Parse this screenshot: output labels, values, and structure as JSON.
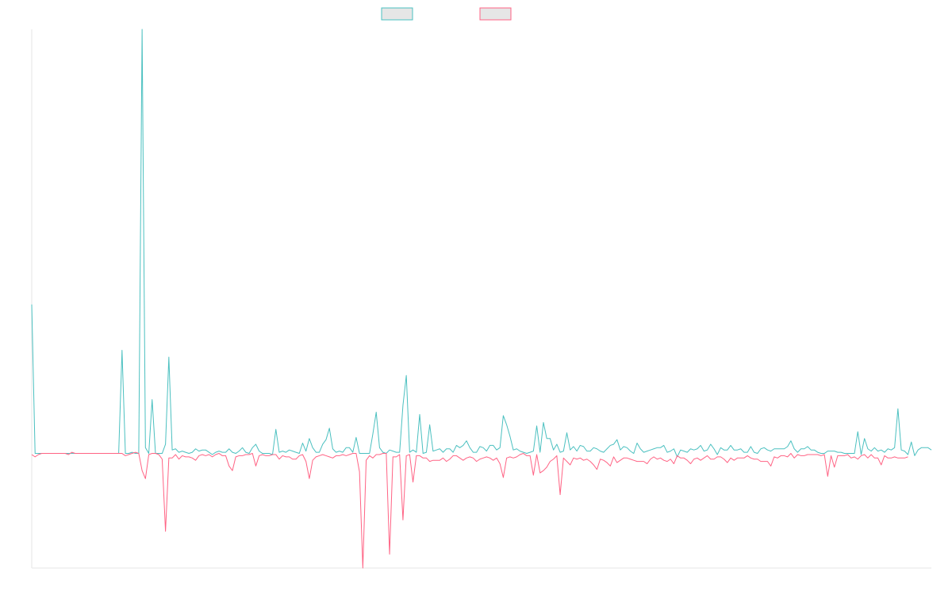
{
  "colors": {
    "series_a": "#4bc0c0",
    "series_b": "#ff6384",
    "legend_fill": "#e6e6e6",
    "axis": "#e6e6e6"
  },
  "chart_data": {
    "type": "line",
    "title": "",
    "xlabel": "",
    "ylabel": "",
    "grid": false,
    "legend": "top-center",
    "ylim": [
      -100,
      370
    ],
    "series": [
      {
        "values": [
          130,
          0,
          0,
          0,
          0,
          0,
          0,
          0,
          0,
          0,
          0,
          0,
          0,
          0,
          0,
          0,
          0,
          0,
          0,
          0,
          0,
          0,
          0,
          0,
          0,
          0,
          0,
          90,
          0,
          0,
          1,
          0,
          0,
          370,
          5,
          0,
          47,
          0,
          0,
          0,
          8,
          84,
          3,
          4,
          1,
          2,
          1,
          0,
          1,
          4,
          2,
          3,
          3,
          1,
          -1,
          1,
          2,
          1,
          1,
          4,
          1,
          0,
          2,
          5,
          1,
          0,
          5,
          8,
          2,
          0,
          0,
          0,
          -1,
          21,
          1,
          2,
          1,
          3,
          2,
          1,
          0,
          9,
          2,
          13,
          5,
          1,
          1,
          8,
          12,
          22,
          4,
          1,
          2,
          1,
          5,
          5,
          1,
          14,
          0,
          0,
          0,
          0,
          17,
          36,
          5,
          1,
          0,
          3,
          2,
          1,
          1,
          42,
          68,
          1,
          3,
          1,
          34,
          0,
          1,
          25,
          2,
          3,
          4,
          1,
          4,
          4,
          1,
          7,
          5,
          7,
          11,
          5,
          1,
          1,
          6,
          5,
          2,
          7,
          7,
          3,
          5,
          33,
          25,
          15,
          3,
          4,
          2,
          1,
          0,
          1,
          2,
          24,
          1,
          27,
          13,
          13,
          3,
          8,
          1,
          2,
          18,
          3,
          6,
          2,
          7,
          6,
          2,
          2,
          5,
          4,
          2,
          1,
          4,
          7,
          8,
          12,
          3,
          6,
          5,
          2,
          0,
          9,
          4,
          1,
          2,
          3,
          4,
          5,
          5,
          7,
          1,
          2,
          4,
          -3,
          3,
          2,
          1,
          4,
          3,
          4,
          7,
          2,
          3,
          8,
          4,
          -1,
          5,
          3,
          3,
          7,
          3,
          3,
          4,
          1,
          1,
          6,
          1,
          0,
          4,
          5,
          3,
          2,
          4,
          4,
          4,
          4,
          6,
          11,
          4,
          1,
          4,
          4,
          6,
          3,
          3,
          1,
          0,
          0,
          2,
          2,
          2,
          1,
          1,
          0,
          0,
          0,
          0,
          19,
          -1,
          13,
          4,
          2,
          5,
          2,
          3,
          1,
          4,
          3,
          5,
          39,
          3,
          2,
          -1,
          10,
          -2,
          3,
          5,
          5,
          5,
          3
        ],
        "color": "#4bc0c0"
      },
      {
        "values": [
          -1,
          -3,
          -1,
          0,
          0,
          0,
          0,
          0,
          0,
          0,
          0,
          -1,
          1,
          0,
          0,
          0,
          0,
          0,
          0,
          0,
          0,
          0,
          0,
          0,
          0,
          0,
          0,
          0,
          -2,
          -1,
          0,
          1,
          0,
          -15,
          -22,
          -1,
          0,
          0,
          -1,
          -5,
          -68,
          -4,
          -4,
          -1,
          -5,
          -2,
          -3,
          -3,
          -4,
          -6,
          -2,
          -1,
          -2,
          -1,
          -3,
          -1,
          0,
          -2,
          -2,
          -11,
          -15,
          -3,
          -2,
          -2,
          -1,
          -1,
          0,
          -11,
          -2,
          -1,
          -2,
          -2,
          -1,
          -1,
          -5,
          -2,
          -3,
          -3,
          -5,
          -5,
          -2,
          -1,
          -7,
          -22,
          -6,
          -3,
          -2,
          -1,
          -2,
          -3,
          -4,
          -2,
          -2,
          -1,
          -2,
          -1,
          0,
          0,
          -16,
          -100,
          -6,
          -2,
          -4,
          -1,
          -1,
          0,
          0,
          -88,
          -3,
          -3,
          -1,
          -58,
          -2,
          -1,
          -25,
          -2,
          -2,
          -4,
          -4,
          -7,
          -6,
          -6,
          -6,
          -4,
          -7,
          -5,
          -2,
          -2,
          -4,
          -6,
          -4,
          -3,
          -4,
          -7,
          -5,
          -4,
          -3,
          -4,
          -6,
          -4,
          -9,
          -21,
          -4,
          -3,
          -4,
          -3,
          -1,
          0,
          -2,
          -2,
          -19,
          -1,
          -17,
          -15,
          -12,
          -7,
          -5,
          -2,
          -36,
          -4,
          -7,
          -10,
          -4,
          -5,
          -4,
          -6,
          -5,
          -7,
          -10,
          -14,
          -5,
          -6,
          -8,
          -11,
          -3,
          -8,
          -6,
          -4,
          -4,
          -5,
          -6,
          -7,
          -7,
          -7,
          -9,
          -5,
          -3,
          -5,
          -4,
          -6,
          -7,
          -5,
          -9,
          -2,
          -4,
          -4,
          -6,
          -9,
          -5,
          -4,
          -6,
          -4,
          -2,
          -5,
          -5,
          -3,
          -3,
          -5,
          -8,
          -4,
          -6,
          -4,
          -4,
          -4,
          -2,
          -4,
          -5,
          -5,
          -7,
          -7,
          -7,
          -11,
          -3,
          -4,
          -2,
          -2,
          -3,
          0,
          -4,
          -1,
          -2,
          -2,
          -1,
          -1,
          -1,
          -1,
          -2,
          -1,
          -20,
          -2,
          -12,
          -2,
          -2,
          -2,
          -1,
          -4,
          -3,
          -5,
          -2,
          -1,
          -4,
          -1,
          -4,
          -4,
          -10,
          -2,
          -4,
          -4,
          -3,
          -4,
          -4,
          -4,
          -3
        ],
        "color": "#ff6384"
      }
    ]
  }
}
